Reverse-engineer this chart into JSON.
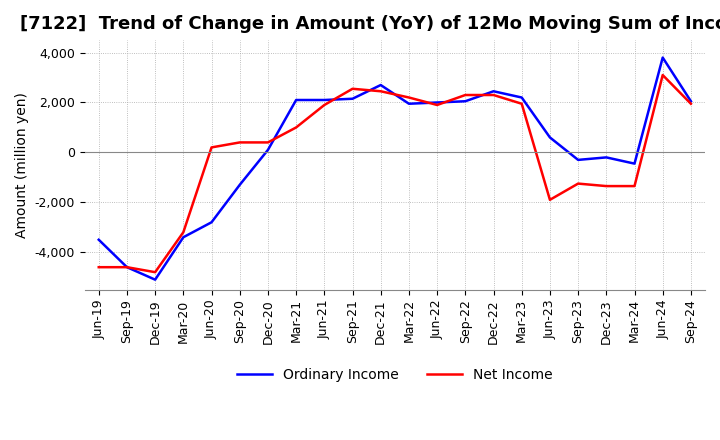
{
  "title": "[7122]  Trend of Change in Amount (YoY) of 12Mo Moving Sum of Incomes",
  "ylabel": "Amount (million yen)",
  "x_labels": [
    "Jun-19",
    "Sep-19",
    "Dec-19",
    "Mar-20",
    "Jun-20",
    "Sep-20",
    "Dec-20",
    "Mar-21",
    "Jun-21",
    "Sep-21",
    "Dec-21",
    "Mar-22",
    "Jun-22",
    "Sep-22",
    "Dec-22",
    "Mar-23",
    "Jun-23",
    "Sep-23",
    "Dec-23",
    "Mar-24",
    "Jun-24",
    "Sep-24"
  ],
  "ordinary_income": [
    -3500,
    -4600,
    -5100,
    -3400,
    -2800,
    -1300,
    100,
    2100,
    2100,
    2150,
    2700,
    1950,
    2000,
    2050,
    2450,
    2200,
    600,
    -300,
    -200,
    -450,
    3800,
    2050
  ],
  "net_income": [
    -4600,
    -4600,
    -4800,
    -3200,
    200,
    400,
    400,
    1000,
    1900,
    2550,
    2450,
    2200,
    1900,
    2300,
    2300,
    1950,
    -1900,
    -1250,
    -1350,
    -1350,
    3100,
    1950
  ],
  "ordinary_income_color": "#0000ff",
  "net_income_color": "#ff0000",
  "ylim": [
    -5500,
    4500
  ],
  "yticks": [
    -4000,
    -2000,
    0,
    2000,
    4000
  ],
  "background_color": "#ffffff",
  "grid_color": "#aaaaaa",
  "title_fontsize": 13,
  "axis_fontsize": 10,
  "tick_fontsize": 9
}
